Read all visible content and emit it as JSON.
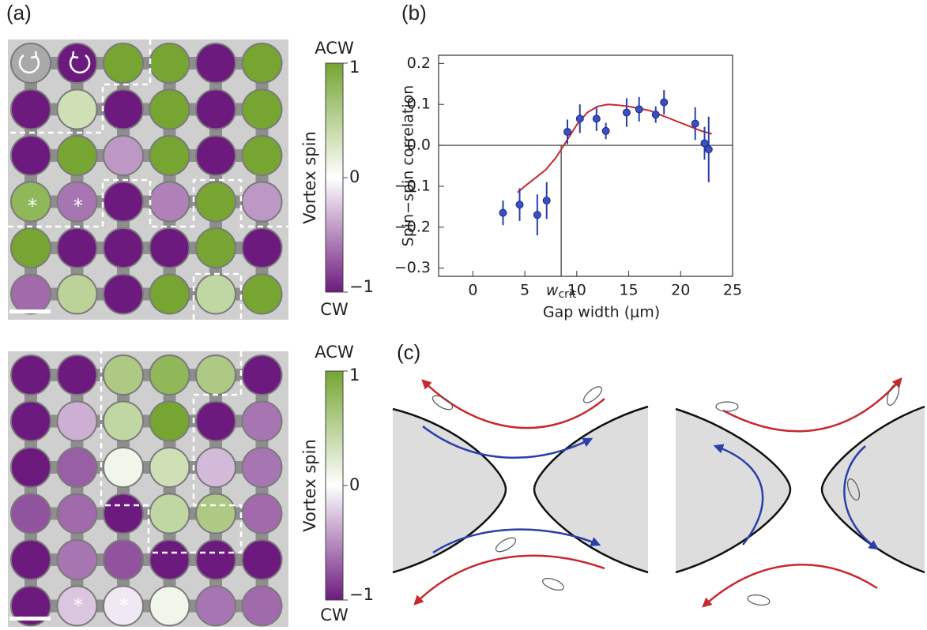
{
  "panel_a": {
    "label": "(a)",
    "colorbar": {
      "label": "Vortex spin",
      "top": "ACW",
      "bottom": "CW",
      "clim": [
        -1,
        1
      ],
      "ticks": [
        1,
        0,
        {
          "value": -1,
          "label": "−1"
        }
      ]
    },
    "star": "*",
    "grids": [
      [
        [
          null,
          -1,
          1,
          1,
          -1,
          1
        ],
        [
          -1,
          0.35,
          -1,
          1,
          -1,
          1
        ],
        [
          -1,
          1,
          -0.45,
          1,
          -1,
          1
        ],
        [
          0.8,
          -0.6,
          -1,
          -0.55,
          1,
          -0.45
        ],
        [
          1,
          -1,
          -1,
          -1,
          1,
          -1
        ],
        [
          -0.65,
          0.5,
          -1,
          1,
          0.45,
          1
        ]
      ],
      [
        [
          -1,
          -1,
          0.6,
          0.8,
          0.6,
          -1
        ],
        [
          -1,
          -0.35,
          0.45,
          1,
          -1,
          -0.6
        ],
        [
          -1,
          -0.7,
          0.1,
          0.35,
          -0.3,
          -0.6
        ],
        [
          -0.75,
          -0.65,
          -1,
          0.45,
          0.6,
          -0.65
        ],
        [
          -1,
          -0.6,
          -0.75,
          -1,
          -1,
          -1
        ],
        [
          -1,
          -0.25,
          -0.1,
          0.1,
          -0.6,
          -0.65
        ]
      ]
    ]
  },
  "chart_data": {
    "type": "scatter",
    "label": "(b)",
    "xlabel": "Gap width (μm)",
    "ylabel": "Spin−spin correlation",
    "xlim": [
      -3.3,
      25
    ],
    "ylim": [
      -0.32,
      0.22
    ],
    "xticks": [
      0,
      5,
      10,
      15,
      20,
      25
    ],
    "yticks": [
      0.2,
      0.1,
      {
        "value": 0,
        "label": "0.0"
      },
      {
        "value": -0.1,
        "label": "−0.1"
      },
      {
        "value": -0.2,
        "label": "−0.2"
      },
      {
        "value": -0.3,
        "label": "−0.3"
      }
    ],
    "hline": 0,
    "annotation": {
      "text": "w",
      "subscript": "crit",
      "x": 8.5
    },
    "series": [
      {
        "type": "scatter",
        "color": "#3b4fc4",
        "x": [
          2.9,
          4.5,
          6.2,
          7.1,
          9.1,
          10.3,
          11.9,
          12.8,
          14.8,
          16.0,
          17.6,
          18.4,
          21.4,
          22.3,
          22.7
        ],
        "values": [
          -0.165,
          -0.145,
          -0.17,
          -0.135,
          0.033,
          0.065,
          0.065,
          0.035,
          0.08,
          0.088,
          0.075,
          0.105,
          0.053,
          0.005,
          -0.01
        ],
        "errors": [
          0.03,
          0.04,
          0.05,
          0.045,
          0.03,
          0.035,
          0.03,
          0.02,
          0.035,
          0.03,
          0.02,
          0.03,
          0.04,
          0.04,
          0.08
        ]
      },
      {
        "type": "line",
        "color": "#c8282e",
        "x": [
          4.3,
          5,
          6,
          7,
          8,
          9,
          10,
          11,
          12,
          13,
          14,
          15,
          16,
          17,
          18,
          19,
          20,
          21,
          22,
          23
        ],
        "values": [
          -0.115,
          -0.1,
          -0.08,
          -0.06,
          -0.03,
          0.01,
          0.05,
          0.08,
          0.095,
          0.1,
          0.098,
          0.095,
          0.09,
          0.085,
          0.075,
          0.065,
          0.055,
          0.045,
          0.035,
          0.028
        ]
      }
    ]
  },
  "panel_c": {
    "label": "(c)"
  }
}
